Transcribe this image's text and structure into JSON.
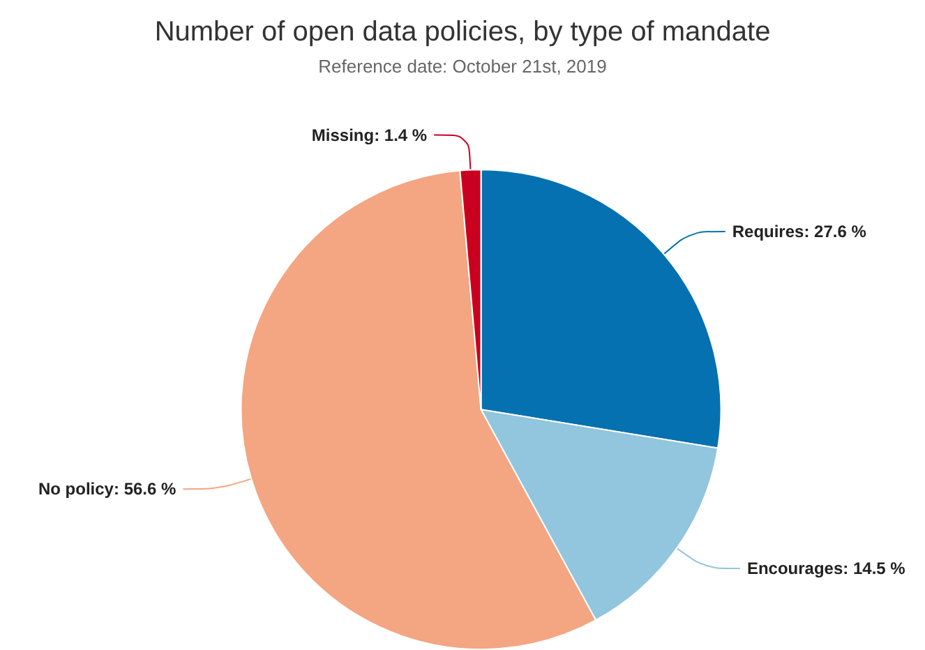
{
  "chart_data": {
    "type": "pie",
    "title": "Number of open data policies, by type of mandate",
    "subtitle": "Reference date: October 21st, 2019",
    "categories": [
      "Requires",
      "Encourages",
      "No policy",
      "Missing"
    ],
    "values": [
      27.6,
      14.5,
      56.6,
      1.4
    ],
    "value_labels": [
      "27.6 %",
      "14.5 %",
      "56.6 %",
      "1.4 %"
    ],
    "colors": [
      "#0571b0",
      "#92c5de",
      "#f4a582",
      "#ca0020"
    ],
    "legend": false
  }
}
